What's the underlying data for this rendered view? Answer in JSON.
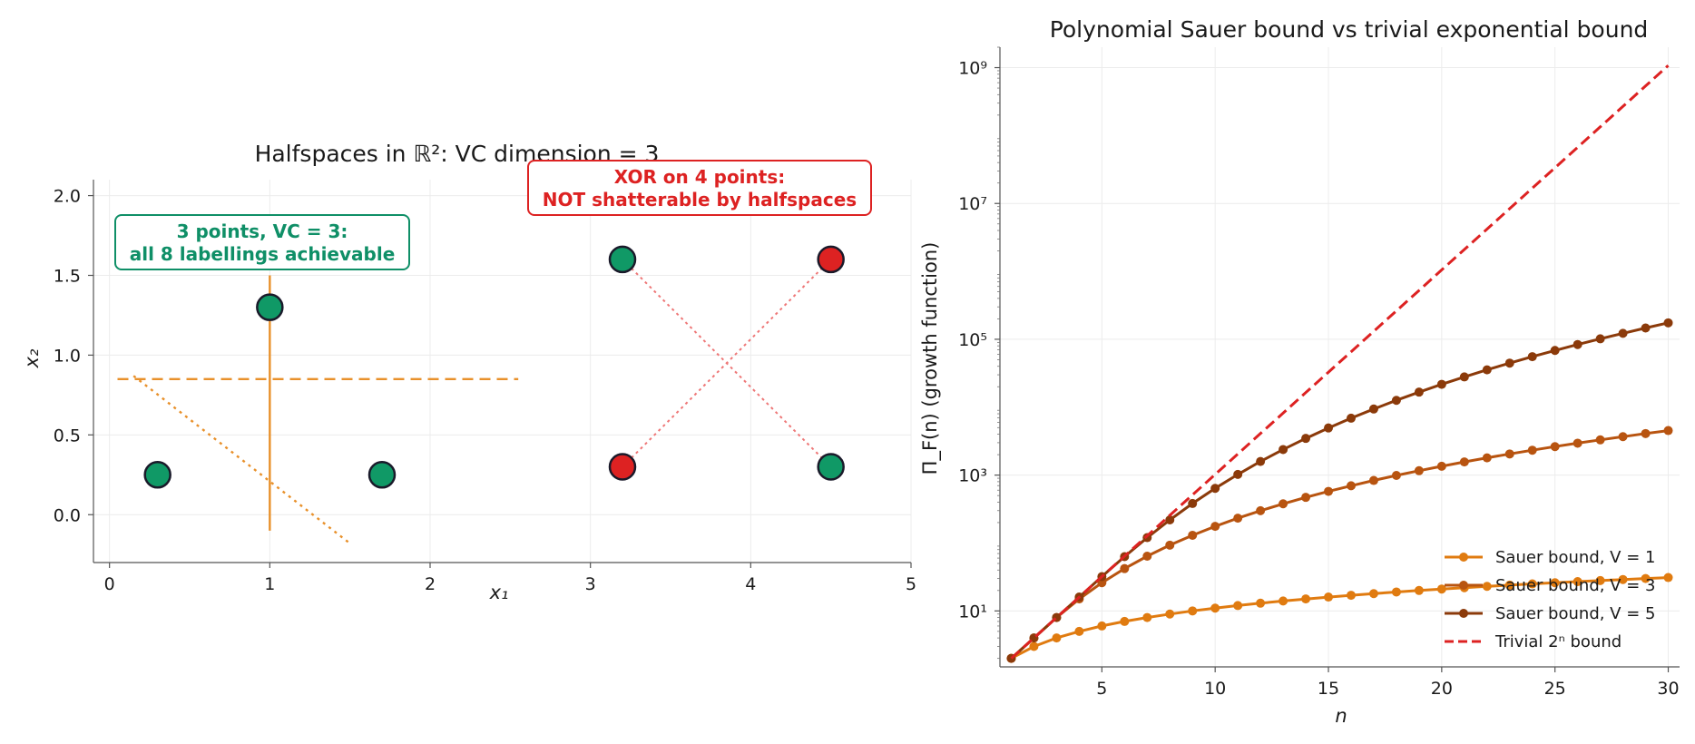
{
  "chart_data": [
    {
      "type": "scatter",
      "title": "Halfspaces in ℝ²: VC dimension = 3",
      "xlabel": "x₁",
      "ylabel": "x₂",
      "xlim": [
        -0.1,
        5.0
      ],
      "ylim": [
        -0.3,
        2.1
      ],
      "x_ticks": [
        0,
        1,
        2,
        3,
        4,
        5
      ],
      "y_ticks": [
        0.0,
        0.5,
        1.0,
        1.5,
        2.0
      ],
      "grid": true,
      "shattered_points": [
        {
          "x": 0.3,
          "y": 0.25,
          "label": "positive"
        },
        {
          "x": 1.7,
          "y": 0.25,
          "label": "positive"
        },
        {
          "x": 1.0,
          "y": 1.3,
          "label": "positive"
        }
      ],
      "xor_points": [
        {
          "x": 3.2,
          "y": 1.6,
          "label": "positive"
        },
        {
          "x": 4.5,
          "y": 1.6,
          "label": "negative"
        },
        {
          "x": 3.2,
          "y": 0.3,
          "label": "negative"
        },
        {
          "x": 4.5,
          "y": 0.3,
          "label": "positive"
        }
      ],
      "separators": [
        {
          "style": "dashed",
          "x": [
            0.05,
            2.55
          ],
          "y": [
            0.85,
            0.85
          ]
        },
        {
          "style": "solid",
          "x": [
            1.0,
            1.0
          ],
          "y": [
            -0.1,
            1.5
          ]
        },
        {
          "style": "dotted",
          "x": [
            0.15,
            1.5
          ],
          "y": [
            0.87,
            -0.18
          ]
        }
      ],
      "xor_diagonals": [
        {
          "x": [
            3.2,
            4.5
          ],
          "y": [
            0.3,
            1.6
          ]
        },
        {
          "x": [
            3.2,
            4.5
          ],
          "y": [
            1.6,
            0.3
          ]
        }
      ],
      "annotations": [
        {
          "line1": "3 points, VC = 3:",
          "line2": "all 8 labellings achievable",
          "color": "#0f8f67"
        },
        {
          "line1": "XOR on 4 points:",
          "line2": "NOT shatterable by halfspaces",
          "color": "#dd2222"
        }
      ],
      "colors": {
        "positive": "#109966",
        "negative": "#dd2222",
        "separator": "#e8902a",
        "xor_line": "#ee7777"
      }
    },
    {
      "type": "line",
      "title": "Polynomial Sauer bound vs trivial exponential bound",
      "xlabel": "n",
      "ylabel": "Π_F(n) (growth function)",
      "yscale": "log",
      "xlim": [
        0.5,
        30.5
      ],
      "ylim": [
        1.5,
        2000000000
      ],
      "x_ticks": [
        5,
        10,
        15,
        20,
        25,
        30
      ],
      "y_ticks": [
        "10^1",
        "10^3",
        "10^5",
        "10^7",
        "10^9"
      ],
      "grid": true,
      "legend_position": "lower-right",
      "x": [
        1,
        2,
        3,
        4,
        5,
        6,
        7,
        8,
        9,
        10,
        11,
        12,
        13,
        14,
        15,
        16,
        17,
        18,
        19,
        20,
        21,
        22,
        23,
        24,
        25,
        26,
        27,
        28,
        29,
        30
      ],
      "series": [
        {
          "name": "Sauer bound, V = 1",
          "color": "#e07b10",
          "style": "solid-markers",
          "values": [
            2,
            3,
            4,
            5,
            6,
            7,
            8,
            9,
            10,
            11,
            12,
            13,
            14,
            15,
            16,
            17,
            18,
            19,
            20,
            21,
            22,
            23,
            24,
            25,
            26,
            27,
            28,
            29,
            30,
            31
          ]
        },
        {
          "name": "Sauer bound, V = 3",
          "color": "#b85410",
          "style": "solid-markers",
          "values": [
            2,
            4,
            8,
            15,
            26,
            42,
            64,
            93,
            130,
            176,
            232,
            299,
            378,
            470,
            576,
            697,
            834,
            988,
            1160,
            1351,
            1562,
            1794,
            2048,
            2325,
            2626,
            2952,
            3304,
            3683,
            4090,
            4526
          ]
        },
        {
          "name": "Sauer bound, V = 5",
          "color": "#8b3a0a",
          "style": "solid-markers",
          "values": [
            2,
            4,
            8,
            16,
            32,
            63,
            120,
            219,
            382,
            638,
            1024,
            1586,
            2380,
            3473,
            4944,
            6885,
            9402,
            12616,
            16664,
            21700,
            27896,
            35443,
            44552,
            55455,
            68406,
            83682,
            101584,
            122438,
            146596,
            174437
          ]
        },
        {
          "name": "Trivial 2ⁿ bound",
          "color": "#dd2222",
          "style": "dashed",
          "values": [
            2,
            4,
            8,
            16,
            32,
            64,
            128,
            256,
            512,
            1024,
            2048,
            4096,
            8192,
            16384,
            32768,
            65536,
            131072,
            262144,
            524288,
            1048576,
            2097152,
            4194304,
            8388608,
            16777216,
            33554432,
            67108864,
            134217728,
            268435456,
            536870912,
            1073741824
          ]
        }
      ]
    }
  ]
}
